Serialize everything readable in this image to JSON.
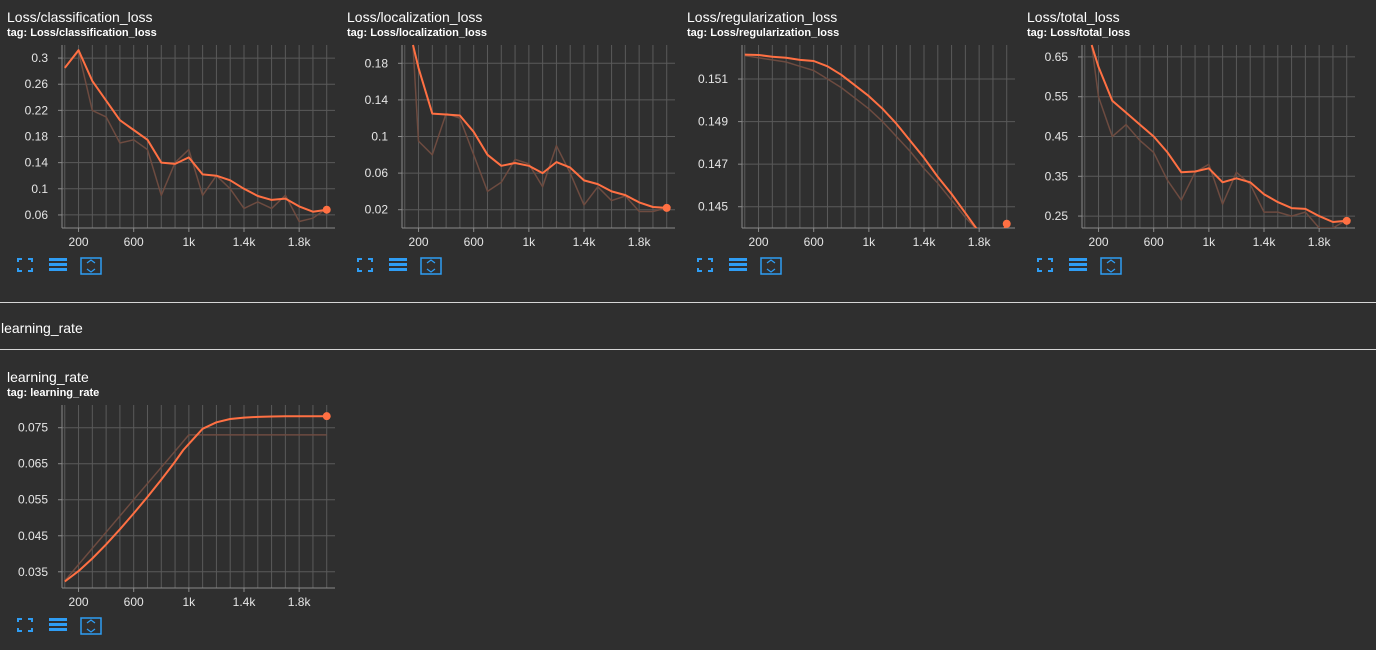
{
  "colors": {
    "background": "#2f2f2f",
    "grid": "#5a5a5a",
    "smoothed_line": "#ff7043",
    "raw_line": "#6d4b40",
    "icon_blue": "#2f9df4"
  },
  "icons": [
    "fullscreen-icon",
    "data-table-icon",
    "fit-domain-icon"
  ],
  "section": {
    "title": "learning_rate"
  },
  "cards": [
    {
      "title": "Loss/classification_loss",
      "tag": "tag: Loss/classification_loss",
      "chart_data": {
        "type": "line",
        "xlim": [
          80,
          2060
        ],
        "ylim": [
          0.04,
          0.32
        ],
        "xticks": [
          {
            "v": 200,
            "l": "200"
          },
          {
            "v": 600,
            "l": "600"
          },
          {
            "v": 1000,
            "l": "1k"
          },
          {
            "v": 1400,
            "l": "1.4k"
          },
          {
            "v": 1800,
            "l": "1.8k"
          }
        ],
        "yticks": [
          {
            "v": 0.06,
            "l": "0.06"
          },
          {
            "v": 0.1,
            "l": "0.1"
          },
          {
            "v": 0.14,
            "l": "0.14"
          },
          {
            "v": 0.18,
            "l": "0.18"
          },
          {
            "v": 0.22,
            "l": "0.22"
          },
          {
            "v": 0.26,
            "l": "0.26"
          },
          {
            "v": 0.3,
            "l": "0.3"
          }
        ],
        "series": [
          {
            "role": "raw",
            "x": [
              100,
              200,
              300,
              400,
              500,
              600,
              700,
              800,
              900,
              1000,
              1100,
              1200,
              1300,
              1400,
              1500,
              1600,
              1700,
              1800,
              1900,
              2000
            ],
            "y": [
              0.285,
              0.31,
              0.22,
              0.21,
              0.17,
              0.175,
              0.16,
              0.09,
              0.14,
              0.16,
              0.09,
              0.12,
              0.1,
              0.07,
              0.08,
              0.07,
              0.09,
              0.05,
              0.055,
              0.07
            ]
          },
          {
            "role": "smoothed",
            "x": [
              100,
              200,
              300,
              400,
              500,
              600,
              700,
              800,
              900,
              1000,
              1100,
              1200,
              1300,
              1400,
              1500,
              1600,
              1700,
              1800,
              1900,
              2000
            ],
            "y": [
              0.285,
              0.312,
              0.265,
              0.235,
              0.205,
              0.19,
              0.175,
              0.14,
              0.138,
              0.148,
              0.122,
              0.12,
              0.113,
              0.1,
              0.089,
              0.083,
              0.085,
              0.073,
              0.065,
              0.068
            ]
          }
        ]
      }
    },
    {
      "title": "Loss/localization_loss",
      "tag": "tag: Loss/localization_loss",
      "chart_data": {
        "type": "line",
        "xlim": [
          80,
          2060
        ],
        "ylim": [
          0.0,
          0.2
        ],
        "xticks": [
          {
            "v": 200,
            "l": "200"
          },
          {
            "v": 600,
            "l": "600"
          },
          {
            "v": 1000,
            "l": "1k"
          },
          {
            "v": 1400,
            "l": "1.4k"
          },
          {
            "v": 1800,
            "l": "1.8k"
          }
        ],
        "yticks": [
          {
            "v": 0.02,
            "l": "0.02"
          },
          {
            "v": 0.06,
            "l": "0.06"
          },
          {
            "v": 0.1,
            "l": "0.1"
          },
          {
            "v": 0.14,
            "l": "0.14"
          },
          {
            "v": 0.18,
            "l": "0.18"
          }
        ],
        "series": [
          {
            "role": "raw",
            "x": [
              160,
              200,
              300,
              400,
              500,
              600,
              700,
              800,
              900,
              1000,
              1100,
              1200,
              1300,
              1400,
              1500,
              1600,
              1700,
              1800,
              1900,
              2000
            ],
            "y": [
              0.2,
              0.095,
              0.08,
              0.125,
              0.12,
              0.08,
              0.04,
              0.05,
              0.075,
              0.07,
              0.045,
              0.09,
              0.06,
              0.025,
              0.045,
              0.03,
              0.035,
              0.018,
              0.018,
              0.022
            ]
          },
          {
            "role": "smoothed",
            "x": [
              160,
              200,
              300,
              400,
              500,
              600,
              700,
              800,
              900,
              1000,
              1100,
              1200,
              1300,
              1400,
              1500,
              1600,
              1700,
              1800,
              1900,
              2000
            ],
            "y": [
              0.2,
              0.175,
              0.125,
              0.124,
              0.123,
              0.105,
              0.08,
              0.068,
              0.071,
              0.068,
              0.06,
              0.072,
              0.066,
              0.052,
              0.048,
              0.04,
              0.036,
              0.028,
              0.023,
              0.022
            ]
          }
        ]
      }
    },
    {
      "title": "Loss/regularization_loss",
      "tag": "tag: Loss/regularization_loss",
      "chart_data": {
        "type": "line",
        "xlim": [
          80,
          2060
        ],
        "ylim": [
          0.144,
          0.1526
        ],
        "xticks": [
          {
            "v": 200,
            "l": "200"
          },
          {
            "v": 600,
            "l": "600"
          },
          {
            "v": 1000,
            "l": "1k"
          },
          {
            "v": 1400,
            "l": "1.4k"
          },
          {
            "v": 1800,
            "l": "1.8k"
          }
        ],
        "yticks": [
          {
            "v": 0.145,
            "l": "0.145"
          },
          {
            "v": 0.147,
            "l": "0.147"
          },
          {
            "v": 0.149,
            "l": "0.149"
          },
          {
            "v": 0.151,
            "l": "0.151"
          }
        ],
        "series": [
          {
            "role": "raw",
            "x": [
              100,
              200,
              300,
              400,
              500,
              600,
              700,
              800,
              900,
              1000,
              1100,
              1200,
              1300,
              1400,
              1500,
              1600,
              1700,
              1800,
              1900,
              2000
            ],
            "y": [
              0.1521,
              0.152,
              0.1519,
              0.1518,
              0.1516,
              0.1514,
              0.151,
              0.1506,
              0.1501,
              0.1496,
              0.149,
              0.1483,
              0.1476,
              0.1468,
              0.1461,
              0.1453,
              0.1445,
              0.1438,
              0.1432,
              0.1424
            ]
          },
          {
            "role": "smoothed",
            "x": [
              100,
              200,
              300,
              400,
              500,
              600,
              700,
              800,
              900,
              1000,
              1100,
              1200,
              1300,
              1400,
              1500,
              1600,
              1700,
              1800,
              1900,
              2000
            ],
            "y": [
              0.15215,
              0.15213,
              0.15205,
              0.152,
              0.1519,
              0.15185,
              0.1516,
              0.1512,
              0.1507,
              0.1502,
              0.1496,
              0.1489,
              0.1481,
              0.1473,
              0.1464,
              0.1456,
              0.1447,
              0.1438,
              0.1429,
              0.1442
            ]
          }
        ]
      }
    },
    {
      "title": "Loss/total_loss",
      "tag": "tag: Loss/total_loss",
      "chart_data": {
        "type": "line",
        "xlim": [
          80,
          2060
        ],
        "ylim": [
          0.22,
          0.68
        ],
        "xticks": [
          {
            "v": 200,
            "l": "200"
          },
          {
            "v": 600,
            "l": "600"
          },
          {
            "v": 1000,
            "l": "1k"
          },
          {
            "v": 1400,
            "l": "1.4k"
          },
          {
            "v": 1800,
            "l": "1.8k"
          }
        ],
        "yticks": [
          {
            "v": 0.25,
            "l": "0.25"
          },
          {
            "v": 0.35,
            "l": "0.35"
          },
          {
            "v": 0.45,
            "l": "0.45"
          },
          {
            "v": 0.55,
            "l": "0.55"
          },
          {
            "v": 0.65,
            "l": "0.65"
          }
        ],
        "series": [
          {
            "role": "raw",
            "x": [
              150,
              200,
              300,
              400,
              500,
              600,
              700,
              800,
              900,
              1000,
              1100,
              1200,
              1300,
              1400,
              1500,
              1600,
              1700,
              1800,
              1900,
              2000
            ],
            "y": [
              0.68,
              0.55,
              0.45,
              0.48,
              0.44,
              0.41,
              0.34,
              0.29,
              0.36,
              0.38,
              0.28,
              0.36,
              0.33,
              0.26,
              0.26,
              0.25,
              0.26,
              0.22,
              0.22,
              0.24
            ]
          },
          {
            "role": "smoothed",
            "x": [
              150,
              200,
              300,
              400,
              500,
              600,
              700,
              800,
              900,
              1000,
              1100,
              1200,
              1300,
              1400,
              1500,
              1600,
              1700,
              1800,
              1900,
              2000
            ],
            "y": [
              0.68,
              0.625,
              0.54,
              0.51,
              0.48,
              0.45,
              0.41,
              0.36,
              0.362,
              0.37,
              0.335,
              0.345,
              0.335,
              0.305,
              0.285,
              0.27,
              0.268,
              0.25,
              0.235,
              0.238
            ]
          }
        ]
      }
    },
    {
      "title": "learning_rate",
      "tag": "tag: learning_rate",
      "chart_data": {
        "type": "line",
        "xlim": [
          80,
          2060
        ],
        "ylim": [
          0.0305,
          0.0813
        ],
        "xticks": [
          {
            "v": 200,
            "l": "200"
          },
          {
            "v": 600,
            "l": "600"
          },
          {
            "v": 1000,
            "l": "1k"
          },
          {
            "v": 1400,
            "l": "1.4k"
          },
          {
            "v": 1800,
            "l": "1.8k"
          }
        ],
        "yticks": [
          {
            "v": 0.035,
            "l": "0.035"
          },
          {
            "v": 0.045,
            "l": "0.045"
          },
          {
            "v": 0.055,
            "l": "0.055"
          },
          {
            "v": 0.065,
            "l": "0.065"
          },
          {
            "v": 0.075,
            "l": "0.075"
          }
        ],
        "series": [
          {
            "role": "raw",
            "x": [
              100,
              200,
              300,
              400,
              500,
              600,
              700,
              800,
              900,
              1000,
              1100,
              1200,
              1300,
              1400,
              1500,
              1600,
              1700,
              1800,
              1900,
              2000
            ],
            "y": [
              0.0325,
              0.037,
              0.0415,
              0.046,
              0.0505,
              0.055,
              0.0595,
              0.064,
              0.0685,
              0.073,
              0.073,
              0.073,
              0.073,
              0.073,
              0.073,
              0.073,
              0.073,
              0.073,
              0.073,
              0.073
            ]
          },
          {
            "role": "smoothed",
            "x": [
              100,
              200,
              300,
              400,
              500,
              600,
              700,
              800,
              900,
              960,
              1000,
              1100,
              1200,
              1300,
              1400,
              1500,
              1600,
              1700,
              1800,
              1900,
              2000
            ],
            "y": [
              0.0323,
              0.0352,
              0.0387,
              0.0426,
              0.0468,
              0.0512,
              0.0558,
              0.0606,
              0.0656,
              0.0688,
              0.0705,
              0.0747,
              0.0765,
              0.0774,
              0.0778,
              0.078,
              0.0781,
              0.0782,
              0.0782,
              0.0782,
              0.0782
            ]
          }
        ]
      }
    }
  ]
}
